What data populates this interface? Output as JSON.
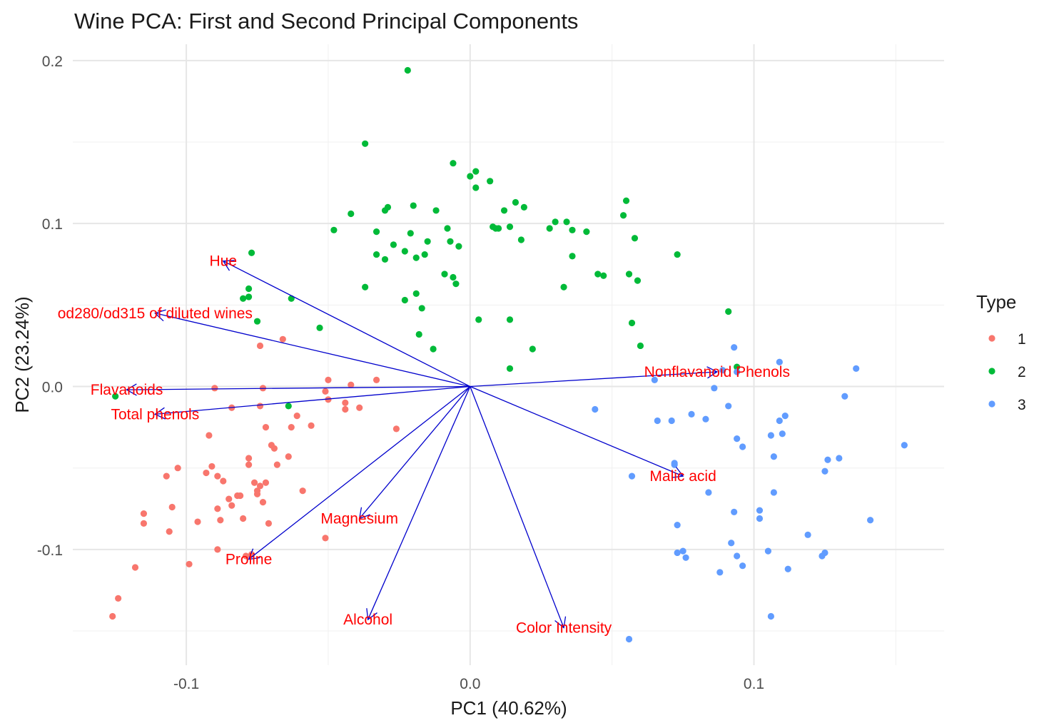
{
  "chart_data": {
    "type": "scatter",
    "title": "Wine PCA: First and Second Principal Components",
    "xlabel": "PC1 (40.62%)",
    "ylabel": "PC2 (23.24%)",
    "xlim": [
      -0.14,
      0.167
    ],
    "ylim": [
      -0.171,
      0.21
    ],
    "xticks": [
      -0.1,
      0.0,
      0.1
    ],
    "xtick_labels": [
      "-0.1",
      "0.0",
      "0.1"
    ],
    "yticks": [
      -0.1,
      0.0,
      0.1,
      0.2
    ],
    "ytick_labels": [
      "-0.1",
      "0.0",
      "0.1",
      "0.2"
    ],
    "grid": true,
    "legend": {
      "title": "Type",
      "position": "right"
    },
    "series": [
      {
        "name": "1",
        "color": "#F8766D",
        "points": [
          [
            -0.126,
            -0.141
          ],
          [
            -0.124,
            -0.13
          ],
          [
            -0.118,
            -0.111
          ],
          [
            -0.115,
            -0.078
          ],
          [
            -0.115,
            -0.084
          ],
          [
            -0.107,
            -0.055
          ],
          [
            -0.105,
            -0.074
          ],
          [
            -0.106,
            -0.089
          ],
          [
            -0.103,
            -0.05
          ],
          [
            -0.099,
            -0.109
          ],
          [
            -0.096,
            -0.083
          ],
          [
            -0.093,
            -0.053
          ],
          [
            -0.091,
            -0.049
          ],
          [
            -0.089,
            -0.055
          ],
          [
            -0.089,
            -0.075
          ],
          [
            -0.088,
            -0.082
          ],
          [
            -0.089,
            -0.1
          ],
          [
            -0.087,
            -0.058
          ],
          [
            -0.085,
            -0.069
          ],
          [
            -0.084,
            -0.073
          ],
          [
            -0.082,
            -0.067
          ],
          [
            -0.081,
            -0.067
          ],
          [
            -0.08,
            -0.081
          ],
          [
            -0.078,
            -0.044
          ],
          [
            -0.078,
            -0.048
          ],
          [
            -0.076,
            -0.059
          ],
          [
            -0.075,
            -0.066
          ],
          [
            -0.075,
            -0.064
          ],
          [
            -0.074,
            -0.061
          ],
          [
            -0.073,
            -0.071
          ],
          [
            -0.072,
            -0.059
          ],
          [
            -0.071,
            -0.084
          ],
          [
            -0.07,
            -0.036
          ],
          [
            -0.069,
            -0.038
          ],
          [
            -0.068,
            -0.048
          ],
          [
            -0.064,
            -0.043
          ],
          [
            -0.059,
            -0.064
          ],
          [
            -0.09,
            -0.001
          ],
          [
            -0.092,
            -0.03
          ],
          [
            -0.084,
            -0.013
          ],
          [
            -0.073,
            -0.001
          ],
          [
            -0.072,
            -0.025
          ],
          [
            -0.066,
            0.029
          ],
          [
            -0.074,
            -0.012
          ],
          [
            -0.074,
            0.025
          ],
          [
            -0.063,
            -0.025
          ],
          [
            -0.061,
            -0.018
          ],
          [
            -0.056,
            -0.024
          ],
          [
            -0.05,
            0.004
          ],
          [
            -0.051,
            -0.003
          ],
          [
            -0.05,
            -0.008
          ],
          [
            -0.044,
            -0.01
          ],
          [
            -0.044,
            -0.014
          ],
          [
            -0.042,
            0.001
          ],
          [
            -0.039,
            -0.013
          ],
          [
            -0.033,
            0.004
          ],
          [
            -0.026,
            -0.026
          ],
          [
            -0.051,
            -0.093
          ],
          [
            -0.079,
            -0.104
          ],
          [
            -0.077,
            -0.103
          ]
        ]
      },
      {
        "name": "2",
        "color": "#00BA38",
        "points": [
          [
            -0.022,
            0.194
          ],
          [
            -0.037,
            0.149
          ],
          [
            -0.006,
            0.137
          ],
          [
            0.0,
            0.129
          ],
          [
            0.002,
            0.132
          ],
          [
            0.007,
            0.126
          ],
          [
            0.002,
            0.122
          ],
          [
            -0.012,
            0.108
          ],
          [
            -0.02,
            0.111
          ],
          [
            -0.03,
            0.108
          ],
          [
            -0.029,
            0.11
          ],
          [
            -0.042,
            0.106
          ],
          [
            -0.048,
            0.096
          ],
          [
            -0.033,
            0.095
          ],
          [
            -0.021,
            0.094
          ],
          [
            -0.015,
            0.089
          ],
          [
            -0.008,
            0.097
          ],
          [
            -0.007,
            0.089
          ],
          [
            -0.004,
            0.086
          ],
          [
            -0.016,
            0.081
          ],
          [
            -0.023,
            0.083
          ],
          [
            -0.027,
            0.087
          ],
          [
            -0.033,
            0.081
          ],
          [
            -0.03,
            0.078
          ],
          [
            -0.019,
            0.079
          ],
          [
            -0.009,
            0.069
          ],
          [
            -0.006,
            0.067
          ],
          [
            -0.005,
            0.063
          ],
          [
            -0.017,
            0.048
          ],
          [
            -0.019,
            0.057
          ],
          [
            -0.023,
            0.053
          ],
          [
            -0.037,
            0.061
          ],
          [
            -0.018,
            0.032
          ],
          [
            -0.013,
            0.023
          ],
          [
            0.003,
            0.041
          ],
          [
            0.014,
            0.041
          ],
          [
            0.018,
            0.09
          ],
          [
            0.01,
            0.097
          ],
          [
            0.014,
            0.098
          ],
          [
            0.009,
            0.097
          ],
          [
            0.008,
            0.098
          ],
          [
            0.012,
            0.108
          ],
          [
            0.016,
            0.113
          ],
          [
            0.019,
            0.11
          ],
          [
            0.028,
            0.097
          ],
          [
            0.03,
            0.101
          ],
          [
            0.034,
            0.101
          ],
          [
            0.036,
            0.096
          ],
          [
            0.041,
            0.095
          ],
          [
            0.036,
            0.08
          ],
          [
            0.033,
            0.061
          ],
          [
            0.045,
            0.069
          ],
          [
            0.047,
            0.068
          ],
          [
            0.054,
            0.105
          ],
          [
            0.055,
            0.114
          ],
          [
            0.058,
            0.091
          ],
          [
            0.056,
            0.069
          ],
          [
            0.059,
            0.065
          ],
          [
            0.057,
            0.039
          ],
          [
            0.06,
            0.025
          ],
          [
            0.073,
            0.081
          ],
          [
            0.091,
            0.046
          ],
          [
            0.094,
            0.012
          ],
          [
            0.014,
            0.011
          ],
          [
            0.022,
            0.023
          ],
          [
            -0.053,
            0.036
          ],
          [
            -0.063,
            0.054
          ],
          [
            -0.075,
            0.04
          ],
          [
            -0.077,
            0.082
          ],
          [
            -0.078,
            0.055
          ],
          [
            -0.078,
            0.06
          ],
          [
            -0.08,
            0.054
          ],
          [
            -0.125,
            -0.006
          ],
          [
            -0.064,
            -0.012
          ]
        ]
      },
      {
        "name": "3",
        "color": "#619CFF",
        "points": [
          [
            0.056,
            -0.155
          ],
          [
            0.044,
            -0.014
          ],
          [
            0.065,
            0.004
          ],
          [
            0.066,
            -0.021
          ],
          [
            0.071,
            -0.021
          ],
          [
            0.078,
            -0.017
          ],
          [
            0.083,
            -0.02
          ],
          [
            0.086,
            -0.001
          ],
          [
            0.091,
            -0.012
          ],
          [
            0.089,
            0.01
          ],
          [
            0.093,
            0.024
          ],
          [
            0.094,
            0.009
          ],
          [
            0.094,
            -0.032
          ],
          [
            0.096,
            -0.037
          ],
          [
            0.106,
            -0.03
          ],
          [
            0.109,
            -0.021
          ],
          [
            0.111,
            -0.018
          ],
          [
            0.11,
            -0.029
          ],
          [
            0.109,
            0.015
          ],
          [
            0.107,
            -0.043
          ],
          [
            0.107,
            -0.065
          ],
          [
            0.102,
            -0.076
          ],
          [
            0.102,
            -0.081
          ],
          [
            0.093,
            -0.077
          ],
          [
            0.084,
            -0.065
          ],
          [
            0.072,
            -0.047
          ],
          [
            0.072,
            -0.048
          ],
          [
            0.073,
            -0.085
          ],
          [
            0.073,
            -0.102
          ],
          [
            0.075,
            -0.101
          ],
          [
            0.076,
            -0.105
          ],
          [
            0.088,
            -0.114
          ],
          [
            0.092,
            -0.096
          ],
          [
            0.094,
            -0.104
          ],
          [
            0.096,
            -0.11
          ],
          [
            0.105,
            -0.101
          ],
          [
            0.106,
            -0.141
          ],
          [
            0.112,
            -0.112
          ],
          [
            0.119,
            -0.091
          ],
          [
            0.124,
            -0.104
          ],
          [
            0.125,
            -0.102
          ],
          [
            0.125,
            -0.052
          ],
          [
            0.126,
            -0.045
          ],
          [
            0.13,
            -0.044
          ],
          [
            0.132,
            -0.006
          ],
          [
            0.136,
            0.011
          ],
          [
            0.141,
            -0.082
          ],
          [
            0.153,
            -0.036
          ],
          [
            0.057,
            -0.055
          ]
        ]
      }
    ],
    "vectors": [
      {
        "label": "Hue",
        "x": -0.087,
        "y": 0.077
      },
      {
        "label": "od280/od315 of diluted wines",
        "x": -0.111,
        "y": 0.045
      },
      {
        "label": "Flavanoids",
        "x": -0.121,
        "y": -0.002
      },
      {
        "label": "Total phenols",
        "x": -0.111,
        "y": -0.017
      },
      {
        "label": "Nonflavanoid Phenols",
        "x": 0.087,
        "y": 0.009
      },
      {
        "label": "Malic acid",
        "x": 0.075,
        "y": -0.055
      },
      {
        "label": "Magnesium",
        "x": -0.039,
        "y": -0.081
      },
      {
        "label": "Proline",
        "x": -0.078,
        "y": -0.106
      },
      {
        "label": "Alcohol",
        "x": -0.036,
        "y": -0.143
      },
      {
        "label": "Color Intensity",
        "x": 0.033,
        "y": -0.148
      }
    ],
    "vector_color": "#0000CC",
    "vector_label_color": "#FF0000"
  }
}
